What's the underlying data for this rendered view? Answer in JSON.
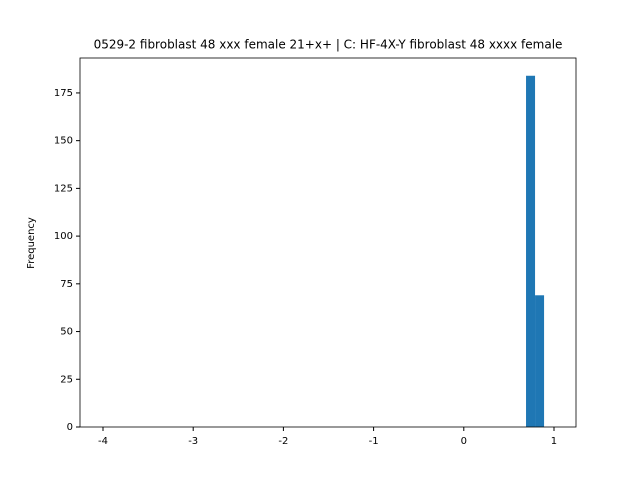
{
  "chart_data": {
    "type": "histogram",
    "title": "0529-2 fibroblast 48 xxx female 21+x+ | C: HF-4X-Y fibroblast 48 xxxx female",
    "ylabel": "Frequency",
    "bins": [
      0.69,
      0.79,
      0.89
    ],
    "values": [
      184,
      69
    ],
    "color": "#1f77b4",
    "xlim": [
      -4.255,
      1.244
    ],
    "xticks": [
      -4,
      -3,
      -2,
      -1,
      0,
      1
    ],
    "ylim": [
      0,
      193.3
    ],
    "yticks": [
      0,
      25,
      50,
      75,
      100,
      125,
      150,
      175
    ],
    "grid": false
  }
}
